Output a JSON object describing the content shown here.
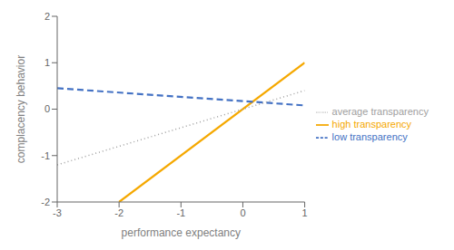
{
  "chart_data": {
    "type": "line",
    "xlabel": "performance expectancy",
    "ylabel": "complacency behavior",
    "xlim": [
      -3,
      1
    ],
    "ylim": [
      -2,
      2
    ],
    "xticks": [
      -3,
      -2,
      -1,
      0,
      1
    ],
    "yticks": [
      -2,
      -1,
      0,
      1,
      2
    ],
    "grid": false,
    "legend": "right",
    "series": [
      {
        "name": "high transparency",
        "color": "#F5A800",
        "line_style": "solid",
        "x": [
          -2,
          1
        ],
        "values": [
          -2,
          1
        ]
      },
      {
        "name": "low transparency",
        "color": "#4472C4",
        "line_style": "dashed",
        "x": [
          -3,
          1
        ],
        "values": [
          0.45,
          0.08
        ]
      },
      {
        "name": "average transparency",
        "color": "#A0A0A0",
        "line_style": "dotted",
        "x": [
          -3,
          1
        ],
        "values": [
          -1.2,
          0.4
        ]
      }
    ]
  }
}
